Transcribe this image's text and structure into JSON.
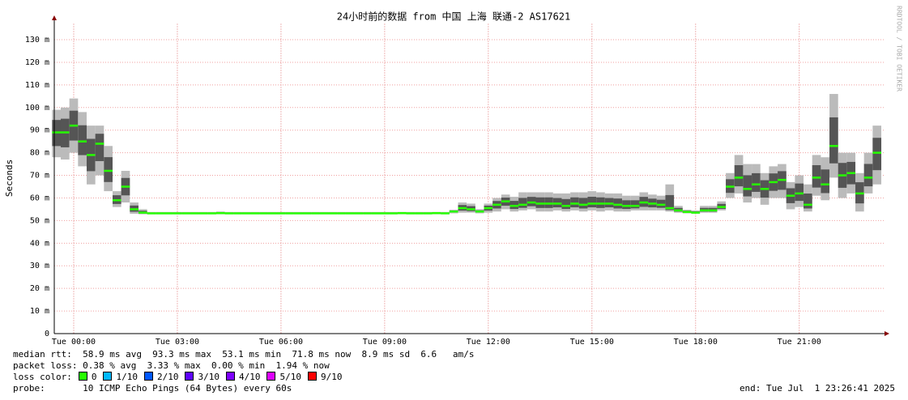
{
  "chart_data": {
    "type": "smokeping",
    "title": "24小时前的数据 from 中国 上海 联通-2 AS17621",
    "y_label": "Seconds",
    "watermark": "RRDTOOL / TOBI OETIKER",
    "xlim": [
      -0.5625,
      23.4447
    ],
    "xticks": [
      {
        "value": 0,
        "label": "Tue 00:00"
      },
      {
        "value": 3,
        "label": "Tue 03:00"
      },
      {
        "value": 6,
        "label": "Tue 06:00"
      },
      {
        "value": 9,
        "label": "Tue 09:00"
      },
      {
        "value": 12,
        "label": "Tue 12:00"
      },
      {
        "value": 15,
        "label": "Tue 15:00"
      },
      {
        "value": 18,
        "label": "Tue 18:00"
      },
      {
        "value": 21,
        "label": "Tue 21:00"
      }
    ],
    "ylim": [
      0,
      0.137
    ],
    "yticks": [
      0,
      {
        "value": 0.01,
        "label": "10 m"
      },
      {
        "value": 0.02,
        "label": "20 m"
      },
      {
        "value": 0.03,
        "label": "30 m"
      },
      {
        "value": 0.04,
        "label": "40 m"
      },
      {
        "value": 0.05,
        "label": "50 m"
      },
      {
        "value": 0.06,
        "label": "60 m"
      },
      {
        "value": 0.07,
        "label": "70 m"
      },
      {
        "value": 0.08,
        "label": "80 m"
      },
      {
        "value": 0.09,
        "label": "90 m"
      },
      {
        "value": 0.1,
        "label": "100 m"
      },
      {
        "value": 0.11,
        "label": "110 m"
      },
      {
        "value": 0.12,
        "label": "120 m"
      },
      {
        "value": 0.13,
        "label": "130 m"
      }
    ],
    "grid": true,
    "median_color": "#26ff00",
    "x": [
      -0.5,
      -0.25,
      0,
      0.25,
      0.5,
      0.75,
      1,
      1.25,
      1.5,
      1.75,
      2,
      2.25,
      2.5,
      2.75,
      3,
      3.25,
      3.5,
      3.75,
      4,
      4.25,
      4.5,
      4.75,
      5,
      5.25,
      5.5,
      5.75,
      6,
      6.25,
      6.5,
      6.75,
      7,
      7.25,
      7.5,
      7.75,
      8,
      8.25,
      8.5,
      8.75,
      9,
      9.25,
      9.5,
      9.75,
      10,
      10.25,
      10.5,
      10.75,
      11,
      11.25,
      11.5,
      11.75,
      12,
      12.25,
      12.5,
      12.75,
      13,
      13.25,
      13.5,
      13.75,
      14,
      14.25,
      14.5,
      14.75,
      15,
      15.25,
      15.5,
      15.75,
      16,
      16.25,
      16.5,
      16.75,
      17,
      17.25,
      17.5,
      17.75,
      18,
      18.25,
      18.5,
      18.75,
      19,
      19.25,
      19.5,
      19.75,
      20,
      20.25,
      20.5,
      20.75,
      21,
      21.25,
      21.5,
      21.75,
      22,
      22.25,
      22.5,
      22.75,
      23,
      23.25
    ],
    "median": [
      0.089,
      0.089,
      0.092,
      0.085,
      0.079,
      0.084,
      0.072,
      0.059,
      0.065,
      0.055,
      0.0535,
      0.0532,
      0.0532,
      0.0532,
      0.0532,
      0.0532,
      0.0532,
      0.0532,
      0.0532,
      0.0533,
      0.0532,
      0.0532,
      0.0532,
      0.0532,
      0.0532,
      0.0532,
      0.0532,
      0.0532,
      0.0532,
      0.0532,
      0.0532,
      0.0532,
      0.0532,
      0.0532,
      0.0532,
      0.0532,
      0.0532,
      0.0532,
      0.0532,
      0.0532,
      0.0533,
      0.0532,
      0.0532,
      0.0532,
      0.0533,
      0.0532,
      0.054,
      0.0555,
      0.055,
      0.054,
      0.0555,
      0.057,
      0.0585,
      0.0565,
      0.057,
      0.058,
      0.0575,
      0.0575,
      0.0575,
      0.0565,
      0.0575,
      0.057,
      0.0575,
      0.0575,
      0.0575,
      0.057,
      0.0565,
      0.0565,
      0.058,
      0.0575,
      0.057,
      0.0555,
      0.0545,
      0.0538,
      0.0535,
      0.0545,
      0.0545,
      0.056,
      0.065,
      0.069,
      0.064,
      0.066,
      0.064,
      0.067,
      0.068,
      0.061,
      0.062,
      0.057,
      0.069,
      0.066,
      0.083,
      0.07,
      0.071,
      0.062,
      0.069,
      0.08
    ],
    "smoke_min": [
      0.078,
      0.077,
      0.08,
      0.074,
      0.066,
      0.07,
      0.063,
      0.056,
      0.058,
      0.053,
      0.0528,
      0.0528,
      0.0528,
      0.0528,
      0.0528,
      0.0528,
      0.0528,
      0.0528,
      0.0528,
      0.0528,
      0.0528,
      0.0528,
      0.0528,
      0.0528,
      0.0528,
      0.0528,
      0.0528,
      0.0528,
      0.0528,
      0.0528,
      0.0528,
      0.0528,
      0.0528,
      0.0528,
      0.0528,
      0.0528,
      0.0528,
      0.0528,
      0.0528,
      0.0528,
      0.0528,
      0.0528,
      0.0528,
      0.0528,
      0.0528,
      0.0528,
      0.0532,
      0.0535,
      0.0535,
      0.0532,
      0.0535,
      0.054,
      0.055,
      0.054,
      0.0545,
      0.055,
      0.054,
      0.054,
      0.0545,
      0.054,
      0.0545,
      0.054,
      0.0545,
      0.054,
      0.0545,
      0.054,
      0.054,
      0.0545,
      0.0545,
      0.0545,
      0.0545,
      0.054,
      0.0535,
      0.0532,
      0.053,
      0.0535,
      0.0535,
      0.0545,
      0.06,
      0.062,
      0.058,
      0.06,
      0.057,
      0.06,
      0.06,
      0.055,
      0.056,
      0.054,
      0.061,
      0.059,
      0.069,
      0.06,
      0.062,
      0.054,
      0.062,
      0.066
    ],
    "smoke_max": [
      0.099,
      0.1,
      0.104,
      0.098,
      0.092,
      0.092,
      0.083,
      0.063,
      0.072,
      0.058,
      0.055,
      0.0538,
      0.0538,
      0.0538,
      0.0538,
      0.0538,
      0.0538,
      0.0538,
      0.0538,
      0.054,
      0.0538,
      0.0538,
      0.0538,
      0.0538,
      0.0538,
      0.0538,
      0.0538,
      0.0538,
      0.0538,
      0.0538,
      0.0538,
      0.0538,
      0.0538,
      0.0538,
      0.0538,
      0.0538,
      0.0538,
      0.0538,
      0.0538,
      0.0538,
      0.0538,
      0.0538,
      0.0538,
      0.0538,
      0.0538,
      0.0538,
      0.0548,
      0.058,
      0.0575,
      0.055,
      0.0575,
      0.06,
      0.0615,
      0.0605,
      0.0625,
      0.0625,
      0.0625,
      0.0625,
      0.062,
      0.062,
      0.0625,
      0.0625,
      0.063,
      0.0625,
      0.062,
      0.062,
      0.061,
      0.061,
      0.0625,
      0.0615,
      0.061,
      0.066,
      0.0565,
      0.0548,
      0.0545,
      0.0565,
      0.0565,
      0.0585,
      0.071,
      0.079,
      0.075,
      0.075,
      0.071,
      0.074,
      0.075,
      0.067,
      0.07,
      0.066,
      0.079,
      0.078,
      0.106,
      0.08,
      0.08,
      0.071,
      0.08,
      0.092
    ],
    "stats": [
      "median rtt:  58.9 ms avg  93.3 ms max  53.1 ms min  71.8 ms now  8.9 ms sd  6.6   am/s",
      "packet loss: 0.38 % avg  3.33 % max  0.00 % min  1.94 % now"
    ],
    "loss_legend": {
      "label": "loss color:",
      "items": [
        {
          "label": "0",
          "color": "#26ff00"
        },
        {
          "label": "1/10",
          "color": "#00b8ff"
        },
        {
          "label": "2/10",
          "color": "#0059ff"
        },
        {
          "label": "3/10",
          "color": "#5e00ff"
        },
        {
          "label": "4/10",
          "color": "#7e00ff"
        },
        {
          "label": "5/10",
          "color": "#dd00ff"
        },
        {
          "label": "9/10",
          "color": "#ff0000"
        }
      ]
    },
    "probe": "probe:       10 ICMP Echo Pings (64 Bytes) every 60s",
    "end": "end: Tue Jul  1 23:26:41 2025"
  }
}
